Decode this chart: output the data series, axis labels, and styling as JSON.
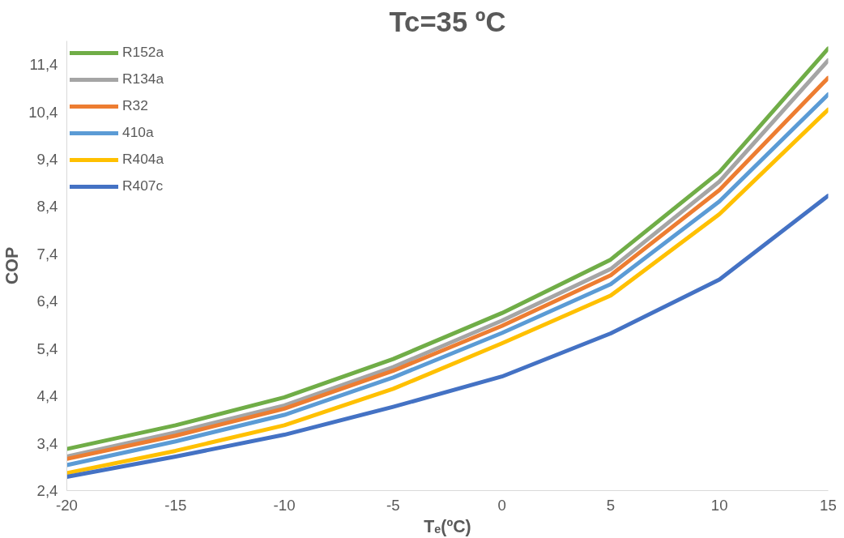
{
  "chart_data": {
    "type": "line",
    "title": "Tc=35 ºC",
    "xlabel": "Tₑ(ºC)",
    "ylabel": "COP",
    "x": [
      -20,
      -15,
      -10,
      -5,
      0,
      5,
      10,
      15
    ],
    "series": [
      {
        "name": "R152a",
        "color": "#70ad47",
        "values": [
          3.28,
          3.78,
          4.37,
          5.18,
          6.15,
          7.28,
          9.13,
          11.74
        ]
      },
      {
        "name": "R134a",
        "color": "#a5a5a5",
        "values": [
          3.12,
          3.63,
          4.2,
          5.01,
          5.99,
          7.08,
          8.93,
          11.49
        ]
      },
      {
        "name": "R32",
        "color": "#ed7d31",
        "values": [
          3.07,
          3.56,
          4.13,
          4.93,
          5.88,
          6.95,
          8.75,
          11.12
        ]
      },
      {
        "name": "410a",
        "color": "#5b9bd5",
        "values": [
          2.94,
          3.44,
          4.0,
          4.79,
          5.73,
          6.76,
          8.51,
          10.77
        ]
      },
      {
        "name": "R404a",
        "color": "#ffc000",
        "values": [
          2.77,
          3.24,
          3.78,
          4.55,
          5.51,
          6.52,
          8.24,
          10.45
        ]
      },
      {
        "name": "R407c",
        "color": "#4472c4",
        "values": [
          2.69,
          3.12,
          3.58,
          4.17,
          4.81,
          5.72,
          6.86,
          8.63
        ]
      }
    ],
    "xlim": [
      -20,
      15
    ],
    "xticks": [
      -20,
      -15,
      -10,
      -5,
      0,
      5,
      10,
      15
    ],
    "ylim": [
      2.4,
      11.9
    ],
    "yticks": [
      {
        "value": 2.4,
        "label": "2,4"
      },
      {
        "value": 3.4,
        "label": "3,4"
      },
      {
        "value": 4.4,
        "label": "4,4"
      },
      {
        "value": 5.4,
        "label": "5,4"
      },
      {
        "value": 6.4,
        "label": "6,4"
      },
      {
        "value": 7.4,
        "label": "7,4"
      },
      {
        "value": 8.4,
        "label": "8,4"
      },
      {
        "value": 9.4,
        "label": "9,4"
      },
      {
        "value": 10.4,
        "label": "10,4"
      },
      {
        "value": 11.4,
        "label": "11,4"
      }
    ],
    "grid": false,
    "legend": "top left",
    "marker": "none",
    "line_style": "solid"
  }
}
